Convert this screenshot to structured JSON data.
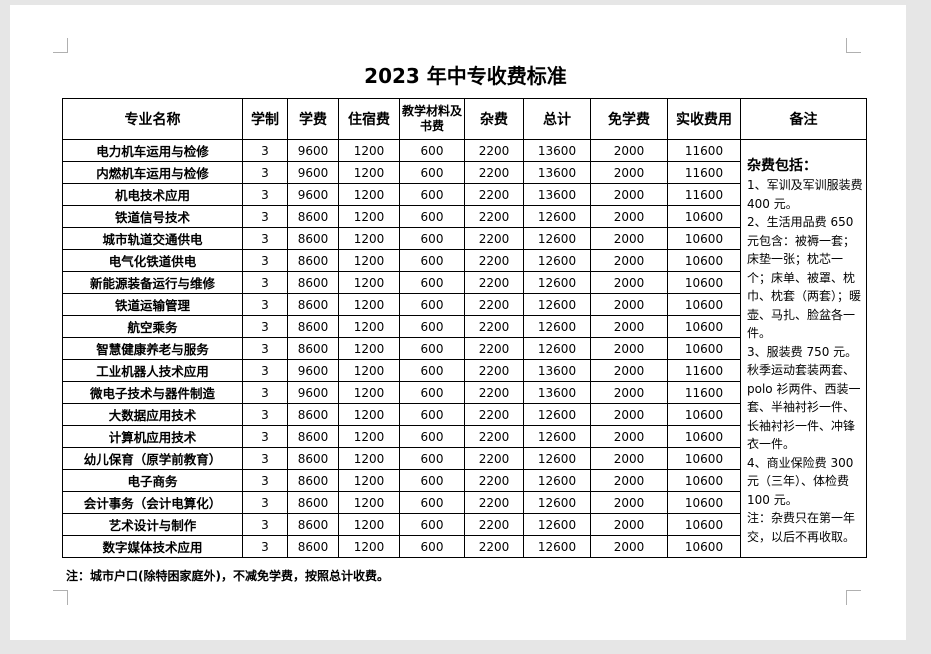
{
  "title": "2023 年中专收费标准",
  "table": {
    "headers": [
      "专业名称",
      "学制",
      "学费",
      "住宿费",
      "教学材料及书费",
      "杂费",
      "总计",
      "免学费",
      "实收费用",
      "备注"
    ],
    "rows": [
      [
        "电力机车运用与检修",
        "3",
        "9600",
        "1200",
        "600",
        "2200",
        "13600",
        "2000",
        "11600"
      ],
      [
        "内燃机车运用与检修",
        "3",
        "9600",
        "1200",
        "600",
        "2200",
        "13600",
        "2000",
        "11600"
      ],
      [
        "机电技术应用",
        "3",
        "9600",
        "1200",
        "600",
        "2200",
        "13600",
        "2000",
        "11600"
      ],
      [
        "铁道信号技术",
        "3",
        "8600",
        "1200",
        "600",
        "2200",
        "12600",
        "2000",
        "10600"
      ],
      [
        "城市轨道交通供电",
        "3",
        "8600",
        "1200",
        "600",
        "2200",
        "12600",
        "2000",
        "10600"
      ],
      [
        "电气化铁道供电",
        "3",
        "8600",
        "1200",
        "600",
        "2200",
        "12600",
        "2000",
        "10600"
      ],
      [
        "新能源装备运行与维修",
        "3",
        "8600",
        "1200",
        "600",
        "2200",
        "12600",
        "2000",
        "10600"
      ],
      [
        "铁道运输管理",
        "3",
        "8600",
        "1200",
        "600",
        "2200",
        "12600",
        "2000",
        "10600"
      ],
      [
        "航空乘务",
        "3",
        "8600",
        "1200",
        "600",
        "2200",
        "12600",
        "2000",
        "10600"
      ],
      [
        "智慧健康养老与服务",
        "3",
        "8600",
        "1200",
        "600",
        "2200",
        "12600",
        "2000",
        "10600"
      ],
      [
        "工业机器人技术应用",
        "3",
        "9600",
        "1200",
        "600",
        "2200",
        "13600",
        "2000",
        "11600"
      ],
      [
        "微电子技术与器件制造",
        "3",
        "9600",
        "1200",
        "600",
        "2200",
        "13600",
        "2000",
        "11600"
      ],
      [
        "大数据应用技术",
        "3",
        "8600",
        "1200",
        "600",
        "2200",
        "12600",
        "2000",
        "10600"
      ],
      [
        "计算机应用技术",
        "3",
        "8600",
        "1200",
        "600",
        "2200",
        "12600",
        "2000",
        "10600"
      ],
      [
        "幼儿保育（原学前教育）",
        "3",
        "8600",
        "1200",
        "600",
        "2200",
        "12600",
        "2000",
        "10600"
      ],
      [
        "电子商务",
        "3",
        "8600",
        "1200",
        "600",
        "2200",
        "12600",
        "2000",
        "10600"
      ],
      [
        "会计事务（会计电算化）",
        "3",
        "8600",
        "1200",
        "600",
        "2200",
        "12600",
        "2000",
        "10600"
      ],
      [
        "艺术设计与制作",
        "3",
        "8600",
        "1200",
        "600",
        "2200",
        "12600",
        "2000",
        "10600"
      ],
      [
        "数字媒体技术应用",
        "3",
        "8600",
        "1200",
        "600",
        "2200",
        "12600",
        "2000",
        "10600"
      ]
    ],
    "notes": {
      "heading": "杂费包括：",
      "paragraphs": [
        "1、军训及军训服装费 400 元。",
        "2、生活用品费 650 元包含：被褥一套；床垫一张；枕芯一个；床单、被罩、枕巾、枕套（两套）；暖壶、马扎、脸盆各一件。",
        "3、服装费 750 元。秋季运动套装两套、polo 衫两件、西装一套、半袖衬衫一件、长袖衬衫一件、冲锋衣一件。",
        "4、商业保险费 300 元（三年）、体检费 100 元。",
        "注：杂费只在第一年交，以后不再收取。"
      ]
    }
  },
  "footnote": "注：城市户口(除特困家庭外)，不减免学费，按照总计收费。"
}
